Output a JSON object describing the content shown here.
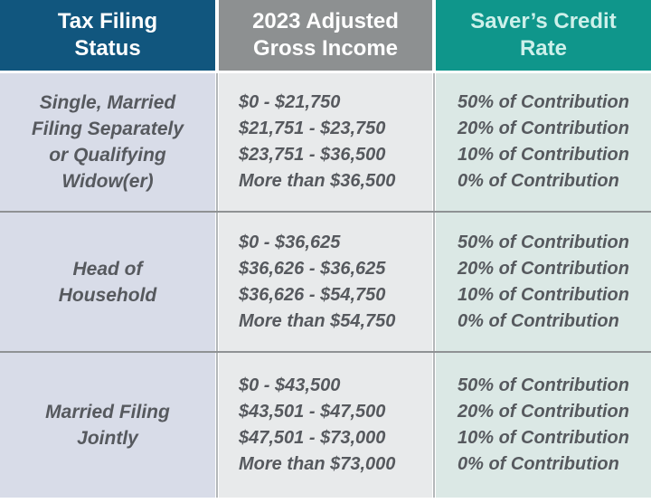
{
  "colors": {
    "header_status_bg": "#11567e",
    "header_income_bg": "#8d9091",
    "header_rate_bg": "#0f968b",
    "header_text": "#ffffff",
    "header_rate_text": "#cdf0ea",
    "body_status_bg": "#d8dce8",
    "body_income_bg": "#e8eaeb",
    "body_rate_bg": "#dbe8e5",
    "body_text": "#56595e",
    "divider": "#8f9294"
  },
  "table": {
    "headers": {
      "status_lines": [
        "Tax Filing",
        "Status"
      ],
      "income_lines": [
        "2023 Adjusted",
        "Gross Income"
      ],
      "rate_lines": [
        "Saver’s Credit",
        "Rate"
      ]
    },
    "rows": [
      {
        "status_lines": [
          "Single, Married",
          "Filing Separately",
          "or Qualifying",
          "Widow(er)"
        ],
        "income_lines": [
          "$0 - $21,750",
          "$21,751 - $23,750",
          "$23,751 - $36,500",
          "More than $36,500"
        ],
        "rate_lines": [
          "50% of Contribution",
          "20% of Contribution",
          "10% of Contribution",
          "0% of Contribution"
        ]
      },
      {
        "status_lines": [
          "Head of",
          "Household"
        ],
        "income_lines": [
          "$0 - $36,625",
          "$36,626 - $36,625",
          "$36,626 - $54,750",
          "More than $54,750"
        ],
        "rate_lines": [
          "50% of Contribution",
          "20% of Contribution",
          "10% of Contribution",
          "0% of Contribution"
        ]
      },
      {
        "status_lines": [
          "Married Filing",
          "Jointly"
        ],
        "income_lines": [
          "$0 - $43,500",
          "$43,501 - $47,500",
          "$47,501 - $73,000",
          "More than $73,000"
        ],
        "rate_lines": [
          "50% of Contribution",
          "20% of Contribution",
          "10% of Contribution",
          "0% of Contribution"
        ]
      }
    ]
  },
  "chart_data": {
    "type": "table",
    "title": "2023 Saver's Credit Rate by Tax Filing Status and Adjusted Gross Income",
    "columns": [
      "Tax Filing Status",
      "2023 Adjusted Gross Income",
      "Saver's Credit Rate"
    ],
    "rows": [
      {
        "filing_status": "Single, Married Filing Separately or Qualifying Widow(er)",
        "brackets": [
          {
            "agi": "$0 - $21,750",
            "rate": "50% of Contribution"
          },
          {
            "agi": "$21,751 - $23,750",
            "rate": "20% of Contribution"
          },
          {
            "agi": "$23,751 - $36,500",
            "rate": "10% of Contribution"
          },
          {
            "agi": "More than $36,500",
            "rate": "0% of Contribution"
          }
        ]
      },
      {
        "filing_status": "Head of Household",
        "brackets": [
          {
            "agi": "$0 - $36,625",
            "rate": "50% of Contribution"
          },
          {
            "agi": "$36,626 - $36,625",
            "rate": "20% of Contribution"
          },
          {
            "agi": "$36,626 - $54,750",
            "rate": "10% of Contribution"
          },
          {
            "agi": "More than $54,750",
            "rate": "0% of Contribution"
          }
        ]
      },
      {
        "filing_status": "Married Filing Jointly",
        "brackets": [
          {
            "agi": "$0 - $43,500",
            "rate": "50% of Contribution"
          },
          {
            "agi": "$43,501 - $47,500",
            "rate": "20% of Contribution"
          },
          {
            "agi": "$47,501 - $73,000",
            "rate": "10% of Contribution"
          },
          {
            "agi": "More than $73,000",
            "rate": "0% of Contribution"
          }
        ]
      }
    ]
  }
}
